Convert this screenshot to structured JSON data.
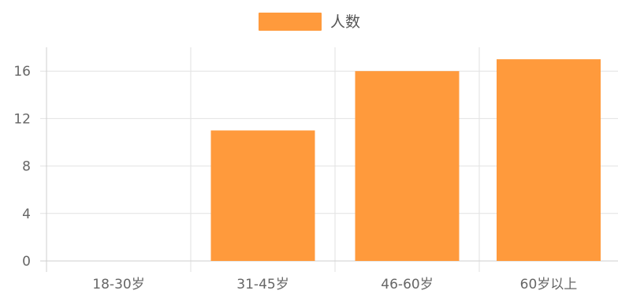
{
  "colors": {
    "bar": "#ff9a3c",
    "grid": "#e2e2e2",
    "text": "#666666"
  },
  "chart_data": {
    "type": "bar",
    "categories": [
      "18-30岁",
      "31-45岁",
      "46-60岁",
      "60岁以上"
    ],
    "series": [
      {
        "name": "人数",
        "values": [
          0,
          11,
          16,
          17
        ]
      }
    ],
    "y_ticks": [
      0,
      4,
      8,
      12,
      16
    ],
    "ylim": [
      0,
      18
    ],
    "grid": true,
    "legend_position": "top-center",
    "title": "",
    "xlabel": "",
    "ylabel": ""
  }
}
